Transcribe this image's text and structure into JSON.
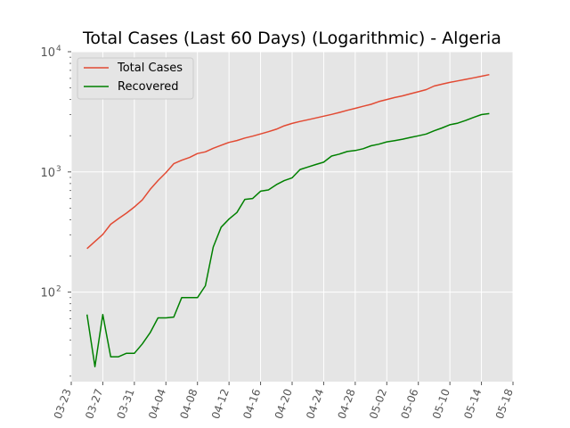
{
  "chart_data": {
    "type": "line",
    "title": "Total Cases (Last 60 Days) (Logarithmic) - Algeria",
    "xlabel": "",
    "ylabel": "",
    "y_scale": "log",
    "ylim": [
      18,
      10000
    ],
    "xlim": [
      "2020-03-23",
      "2020-05-18"
    ],
    "grid": true,
    "legend_position": "top-left",
    "x_ticks": [
      "03-23",
      "03-27",
      "03-31",
      "04-04",
      "04-08",
      "04-12",
      "04-16",
      "04-20",
      "04-24",
      "04-28",
      "05-02",
      "05-06",
      "05-10",
      "05-14",
      "05-18"
    ],
    "y_ticks": [
      {
        "value": 100,
        "base": "10",
        "exp": "2"
      },
      {
        "value": 1000,
        "base": "10",
        "exp": "3"
      },
      {
        "value": 10000,
        "base": "10",
        "exp": "4"
      }
    ],
    "x": [
      "2020-03-25",
      "2020-03-26",
      "2020-03-27",
      "2020-03-28",
      "2020-03-29",
      "2020-03-30",
      "2020-03-31",
      "2020-04-01",
      "2020-04-02",
      "2020-04-03",
      "2020-04-04",
      "2020-04-05",
      "2020-04-06",
      "2020-04-07",
      "2020-04-08",
      "2020-04-09",
      "2020-04-10",
      "2020-04-11",
      "2020-04-12",
      "2020-04-13",
      "2020-04-14",
      "2020-04-15",
      "2020-04-16",
      "2020-04-17",
      "2020-04-18",
      "2020-04-19",
      "2020-04-20",
      "2020-04-21",
      "2020-04-22",
      "2020-04-23",
      "2020-04-24",
      "2020-04-25",
      "2020-04-26",
      "2020-04-27",
      "2020-04-28",
      "2020-04-29",
      "2020-04-30",
      "2020-05-01",
      "2020-05-02",
      "2020-05-03",
      "2020-05-04",
      "2020-05-05",
      "2020-05-06",
      "2020-05-07",
      "2020-05-08",
      "2020-05-09",
      "2020-05-10",
      "2020-05-11",
      "2020-05-12",
      "2020-05-13",
      "2020-05-14",
      "2020-05-15"
    ],
    "series": [
      {
        "name": "Total Cases",
        "color": "#e24a33",
        "values": [
          230,
          264,
          302,
          367,
          409,
          454,
          511,
          584,
          716,
          847,
          986,
          1171,
          1251,
          1320,
          1423,
          1468,
          1572,
          1666,
          1761,
          1825,
          1914,
          1983,
          2070,
          2160,
          2268,
          2418,
          2534,
          2629,
          2718,
          2811,
          2910,
          3007,
          3127,
          3256,
          3382,
          3517,
          3649,
          3848,
          4006,
          4154,
          4295,
          4474,
          4648,
          4838,
          5182,
          5369,
          5558,
          5723,
          5891,
          6067,
          6253,
          6442
        ]
      },
      {
        "name": "Recovered",
        "color": "#008000",
        "values": [
          65,
          24,
          65,
          29,
          29,
          31,
          31,
          37,
          46,
          61,
          61,
          62,
          90,
          90,
          90,
          113,
          237,
          347,
          405,
          460,
          591,
          601,
          691,
          708,
          783,
          846,
          894,
          1047,
          1099,
          1152,
          1204,
          1355,
          1408,
          1479,
          1508,
          1558,
          1651,
          1702,
          1779,
          1821,
          1872,
          1936,
          1998,
          2067,
          2197,
          2323,
          2467,
          2546,
          2678,
          2841,
          2998,
          3058
        ]
      }
    ]
  }
}
